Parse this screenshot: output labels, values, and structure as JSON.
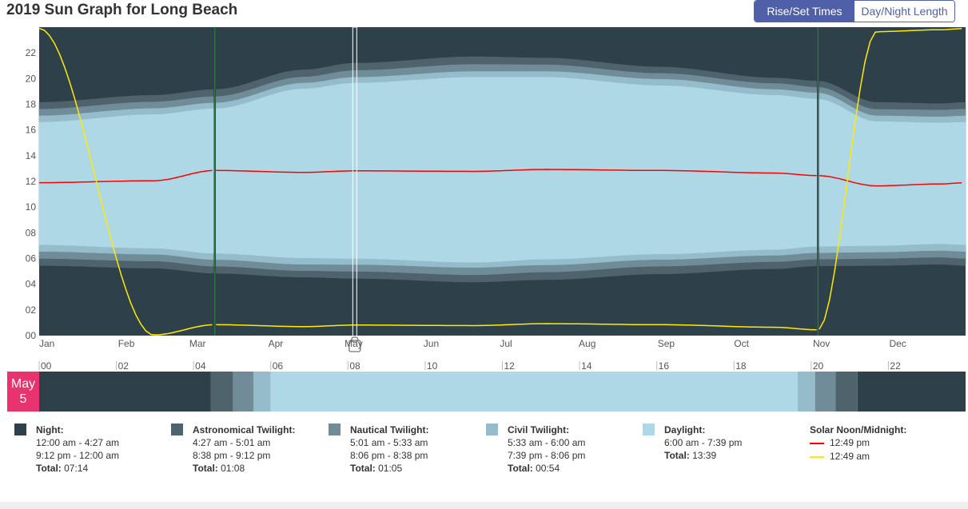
{
  "page": {
    "title": "2019 Sun Graph for Long Beach"
  },
  "tabs": [
    {
      "label": "Rise/Set Times",
      "active": true
    },
    {
      "label": "Day/Night Length",
      "active": false
    }
  ],
  "colors": {
    "night": "#2e414b",
    "astronomical": "#4f636d",
    "nautical": "#6f8c98",
    "civil": "#94bccb",
    "daylight": "#aed8e5",
    "solar_noon": "#ff0000",
    "solar_midnight": "#ffea00",
    "dst_marker": "#2f7a3c",
    "accent": "#4f5fa8",
    "date_badge": "#e8336e"
  },
  "chart_data": {
    "type": "area",
    "title": "2019 Sun Graph for Long Beach",
    "y_ticks": [
      "00",
      "02",
      "04",
      "06",
      "08",
      "10",
      "12",
      "14",
      "16",
      "18",
      "20",
      "22"
    ],
    "ylim": [
      0,
      24
    ],
    "months": [
      "Jan",
      "Feb",
      "Mar",
      "Apr",
      "May",
      "Jun",
      "Jul",
      "Aug",
      "Sep",
      "Oct",
      "Nov",
      "Dec"
    ],
    "dst_start_day": 70,
    "dst_end_day": 307,
    "selected_day": 125,
    "selected_label": "May 5",
    "x_days": [
      1,
      46,
      70,
      105,
      125,
      172,
      200,
      245,
      290,
      307,
      330,
      355,
      365
    ],
    "series": [
      {
        "name": "Night",
        "key": "night_morning_end",
        "values": [
          5.45,
          5.25,
          4.85,
          4.55,
          4.45,
          4.17,
          4.35,
          4.8,
          5.2,
          5.42,
          5.45,
          5.55,
          5.45
        ]
      },
      {
        "name": "Astronomical Twilight",
        "key": "astro_end",
        "values": [
          6.0,
          5.8,
          5.4,
          5.05,
          5.0,
          4.73,
          4.95,
          5.4,
          5.75,
          5.95,
          6.0,
          6.1,
          6.0
        ]
      },
      {
        "name": "Nautical Twilight",
        "key": "nautical_end",
        "values": [
          6.55,
          6.33,
          5.92,
          5.55,
          5.53,
          5.3,
          5.5,
          5.92,
          6.25,
          6.45,
          6.5,
          6.62,
          6.55
        ]
      },
      {
        "name": "Civil Twilight",
        "key": "civil_end",
        "values": [
          7.07,
          6.8,
          6.4,
          6.05,
          6.0,
          5.7,
          5.95,
          6.35,
          6.7,
          6.95,
          7.0,
          7.15,
          7.07
        ]
      },
      {
        "name": "Daylight",
        "key": "daylight_end",
        "values": [
          16.6,
          17.2,
          17.65,
          19.2,
          19.65,
          20.1,
          20.1,
          19.45,
          18.7,
          18.4,
          16.65,
          16.55,
          16.6
        ]
      },
      {
        "name": "Civil Twilight",
        "key": "civil_evening_end",
        "values": [
          17.1,
          17.67,
          18.1,
          19.65,
          20.1,
          20.55,
          20.55,
          19.95,
          19.15,
          18.88,
          17.1,
          17.02,
          17.1
        ]
      },
      {
        "name": "Nautical Twilight",
        "key": "nautical_evening_end",
        "values": [
          17.62,
          18.18,
          18.6,
          20.12,
          20.63,
          21.1,
          21.07,
          20.4,
          19.62,
          19.32,
          17.6,
          17.55,
          17.62
        ]
      },
      {
        "name": "Astronomical Twilight",
        "key": "astro_evening_end",
        "values": [
          18.15,
          18.7,
          19.15,
          20.68,
          21.2,
          21.7,
          21.6,
          20.9,
          20.05,
          19.8,
          18.15,
          18.05,
          18.15
        ]
      },
      {
        "name": "Solar Noon",
        "key": "solar_noon",
        "values": [
          11.9,
          12.05,
          12.85,
          12.7,
          12.82,
          12.78,
          12.93,
          12.85,
          12.65,
          12.45,
          11.65,
          11.8,
          11.9
        ]
      },
      {
        "name": "Solar Midnight",
        "key": "solar_midnight",
        "values": [
          23.9,
          0.05,
          0.85,
          0.7,
          0.82,
          0.78,
          0.93,
          0.85,
          0.65,
          0.45,
          23.65,
          23.8,
          23.9
        ]
      }
    ],
    "strip_hour_ticks": [
      "00",
      "02",
      "04",
      "06",
      "08",
      "10",
      "12",
      "14",
      "16",
      "18",
      "20",
      "22"
    ],
    "strip_segments": [
      {
        "type": "night",
        "start": 0.0,
        "end": 4.45
      },
      {
        "type": "astronomical",
        "start": 4.45,
        "end": 5.02
      },
      {
        "type": "nautical",
        "start": 5.02,
        "end": 5.55
      },
      {
        "type": "civil",
        "start": 5.55,
        "end": 6.0
      },
      {
        "type": "daylight",
        "start": 6.0,
        "end": 19.65
      },
      {
        "type": "civil",
        "start": 19.65,
        "end": 20.1
      },
      {
        "type": "nautical",
        "start": 20.1,
        "end": 20.63
      },
      {
        "type": "astronomical",
        "start": 20.63,
        "end": 21.2
      },
      {
        "type": "night",
        "start": 21.2,
        "end": 24.0
      }
    ]
  },
  "date_badge": {
    "month": "May",
    "day": "5"
  },
  "legend": {
    "night": {
      "title": "Night:",
      "line1": "12:00 am - 4:27 am",
      "line2": "9:12 pm - 12:00 am",
      "total_label": "Total:",
      "total_value": "07:14"
    },
    "astronomical": {
      "title": "Astronomical Twilight:",
      "line1": "4:27 am - 5:01 am",
      "line2": "8:38 pm - 9:12 pm",
      "total_label": "Total:",
      "total_value": "01:08"
    },
    "nautical": {
      "title": "Nautical Twilight:",
      "line1": "5:01 am - 5:33 am",
      "line2": "8:06 pm - 8:38 pm",
      "total_label": "Total:",
      "total_value": "01:05"
    },
    "civil": {
      "title": "Civil Twilight:",
      "line1": "5:33 am - 6:00 am",
      "line2": "7:39 pm - 8:06 pm",
      "total_label": "Total:",
      "total_value": "00:54"
    },
    "daylight": {
      "title": "Daylight:",
      "line1": "6:00 am - 7:39 pm",
      "total_label": "Total:",
      "total_value": "13:39"
    },
    "solar": {
      "title": "Solar Noon/Midnight:",
      "noon": "12:49 pm",
      "midnight": "12:49 am"
    }
  }
}
